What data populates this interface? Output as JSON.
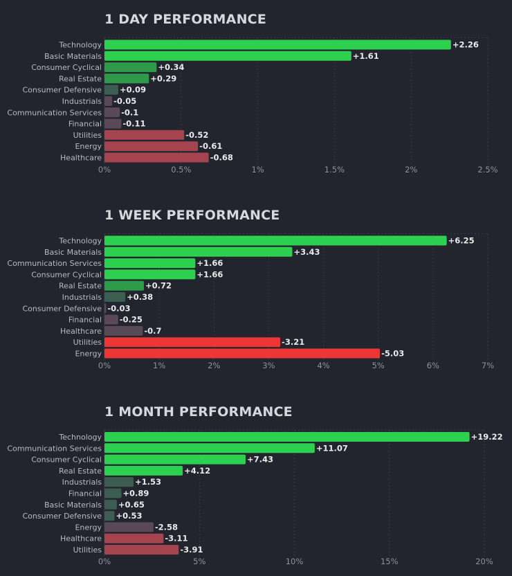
{
  "colors": {
    "background": "#22252d",
    "gridline": "#3a3e47",
    "positive_strong": "#2dd04f",
    "positive_mid": "#2e9a4a",
    "positive_weak": "#3d5d52",
    "negative_weak": "#5a4a57",
    "negative_mid": "#a5434f",
    "negative_strong": "#ec3535"
  },
  "chart_data": [
    {
      "type": "bar",
      "orientation": "horizontal",
      "title": "1 DAY PERFORMANCE",
      "categories": [
        "Technology",
        "Basic Materials",
        "Consumer Cyclical",
        "Real Estate",
        "Consumer Defensive",
        "Industrials",
        "Communication Services",
        "Financial",
        "Utilities",
        "Energy",
        "Healthcare"
      ],
      "values": [
        2.26,
        1.61,
        0.34,
        0.29,
        0.09,
        -0.05,
        -0.1,
        -0.11,
        -0.52,
        -0.61,
        -0.68
      ],
      "value_labels": [
        "+2.26",
        "+1.61",
        "+0.34",
        "+0.29",
        "+0.09",
        "-0.05",
        "-0.1",
        "-0.11",
        "-0.52",
        "-0.61",
        "-0.68"
      ],
      "xlim": [
        0,
        2.5
      ],
      "xticks": [
        0,
        0.5,
        1,
        1.5,
        2,
        2.5
      ],
      "xtick_labels": [
        "0%",
        "0.5%",
        "1%",
        "1.5%",
        "2%",
        "2.5%"
      ],
      "bar_length": "absolute value",
      "grid": true
    },
    {
      "type": "bar",
      "orientation": "horizontal",
      "title": "1 WEEK PERFORMANCE",
      "categories": [
        "Technology",
        "Basic Materials",
        "Communication Services",
        "Consumer Cyclical",
        "Real Estate",
        "Industrials",
        "Consumer Defensive",
        "Financial",
        "Healthcare",
        "Utilities",
        "Energy"
      ],
      "values": [
        6.25,
        3.43,
        1.66,
        1.66,
        0.72,
        0.38,
        -0.03,
        -0.25,
        -0.7,
        -3.21,
        -5.03
      ],
      "value_labels": [
        "+6.25",
        "+3.43",
        "+1.66",
        "+1.66",
        "+0.72",
        "+0.38",
        "-0.03",
        "-0.25",
        "-0.7",
        "-3.21",
        "-5.03"
      ],
      "xlim": [
        0,
        7
      ],
      "xticks": [
        0,
        1,
        2,
        3,
        4,
        5,
        6,
        7
      ],
      "xtick_labels": [
        "0%",
        "1%",
        "2%",
        "3%",
        "4%",
        "5%",
        "6%",
        "7%"
      ],
      "bar_length": "absolute value",
      "grid": true
    },
    {
      "type": "bar",
      "orientation": "horizontal",
      "title": "1 MONTH PERFORMANCE",
      "categories": [
        "Technology",
        "Communication Services",
        "Consumer Cyclical",
        "Real Estate",
        "Industrials",
        "Financial",
        "Basic Materials",
        "Consumer Defensive",
        "Energy",
        "Healthcare",
        "Utilities"
      ],
      "values": [
        19.22,
        11.07,
        7.43,
        4.12,
        1.53,
        0.89,
        0.65,
        0.53,
        -2.58,
        -3.11,
        -3.91
      ],
      "value_labels": [
        "+19.22",
        "+11.07",
        "+7.43",
        "+4.12",
        "+1.53",
        "+0.89",
        "+0.65",
        "+0.53",
        "-2.58",
        "-3.11",
        "-3.91"
      ],
      "xlim": [
        0,
        20
      ],
      "xticks": [
        0,
        5,
        10,
        15,
        20
      ],
      "xtick_labels": [
        "0%",
        "5%",
        "10%",
        "15%",
        "20%"
      ],
      "bar_length": "absolute value",
      "grid": true
    }
  ]
}
